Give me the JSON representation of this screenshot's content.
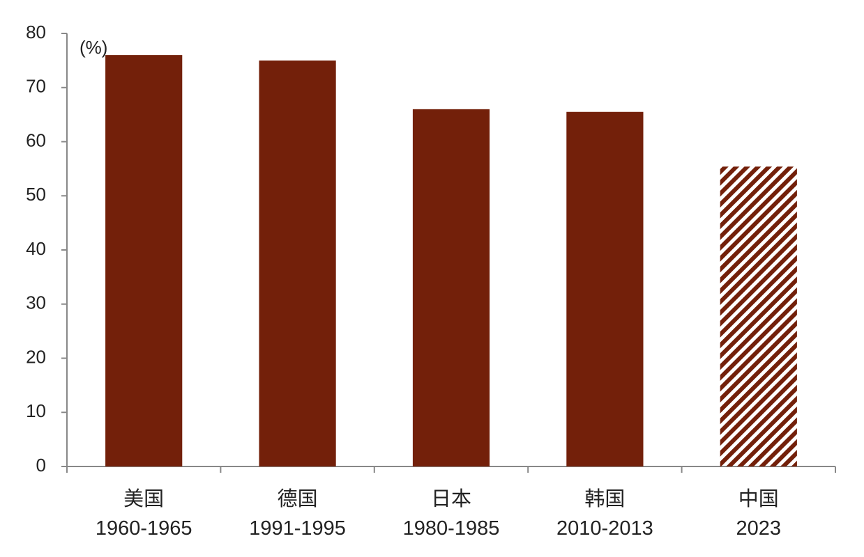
{
  "chart_data": {
    "type": "bar",
    "annotation": "(%)",
    "categories": [
      "美国\n1960-1965",
      "德国\n1991-1995",
      "日本\n1980-1985",
      "韩国\n2010-2013",
      "中国\n2023"
    ],
    "values": [
      76.0,
      75.0,
      66.0,
      65.5,
      55.4
    ],
    "color": "#73200a",
    "hatched": [
      false,
      false,
      false,
      false,
      true
    ],
    "ylim": [
      0,
      80
    ],
    "yticks": [
      0,
      10,
      20,
      30,
      40,
      50,
      60,
      70,
      80
    ],
    "grid": false
  }
}
